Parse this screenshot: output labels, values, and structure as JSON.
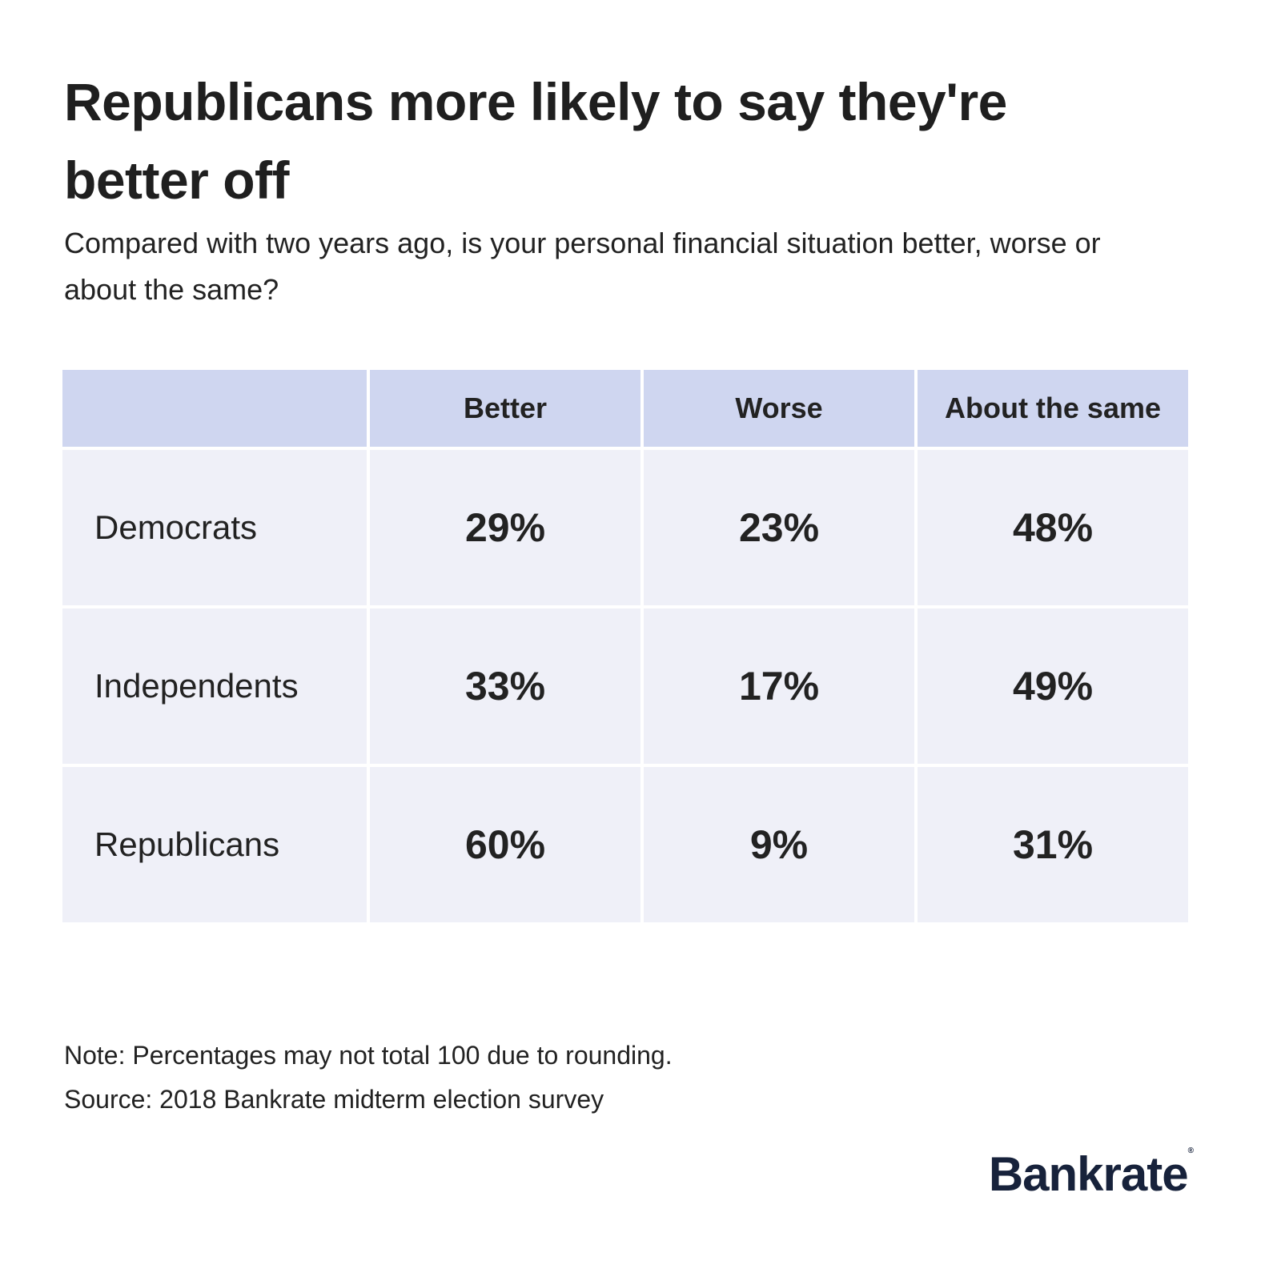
{
  "chart_data": {
    "type": "table",
    "title": "Republicans more likely to say they're better off",
    "subtitle": "Compared with two years ago, is your personal financial situation better, worse or about the same?",
    "columns": [
      "",
      "Better",
      "Worse",
      "About the same"
    ],
    "rows": [
      {
        "label": "Democrats",
        "values": [
          "29%",
          "23%",
          "48%"
        ]
      },
      {
        "label": "Independents",
        "values": [
          "33%",
          "17%",
          "49%"
        ]
      },
      {
        "label": "Republicans",
        "values": [
          "60%",
          "9%",
          "31%"
        ]
      }
    ],
    "note": "Note: Percentages may not total 100 due to rounding.",
    "source": "Source: 2018 Bankrate midterm election survey"
  },
  "brand": {
    "logo": "Bankrate",
    "header_color": "#cfd6f0",
    "cell_color": "#eff0f8",
    "logo_color": "#17223b"
  }
}
